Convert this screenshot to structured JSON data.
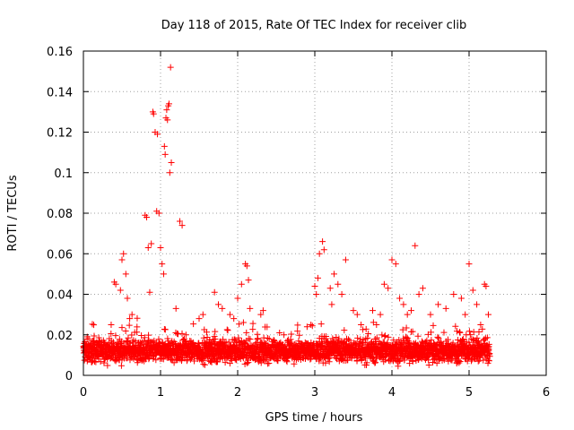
{
  "chart_data": {
    "type": "scatter",
    "title": "Day 118 of 2015, Rate Of TEC Index for receiver clib",
    "xlabel": "GPS time / hours",
    "ylabel": "ROTI / TECUs",
    "xlim": [
      0,
      6
    ],
    "ylim": [
      0,
      0.16
    ],
    "xticks": [
      "0",
      "1",
      "2",
      "3",
      "4",
      "5",
      "6"
    ],
    "yticks": [
      "0",
      "0.02",
      "0.04",
      "0.06",
      "0.08",
      "0.1",
      "0.12",
      "0.14",
      "0.16"
    ],
    "grid": true,
    "marker": "+",
    "color": "#ff0000",
    "series": [
      {
        "name": "ROTI",
        "x": [
          0.05,
          0.07,
          0.1,
          0.12,
          0.36,
          0.4,
          0.42,
          0.48,
          0.5,
          0.52,
          0.55,
          0.57,
          0.6,
          0.63,
          0.8,
          0.82,
          0.84,
          0.86,
          0.88,
          0.9,
          0.91,
          0.93,
          0.95,
          0.96,
          0.98,
          1.0,
          1.02,
          1.04,
          1.05,
          1.06,
          1.07,
          1.08,
          1.09,
          1.1,
          1.11,
          1.12,
          1.13,
          1.14,
          1.2,
          1.25,
          1.28,
          1.33,
          1.5,
          1.55,
          1.7,
          1.75,
          1.8,
          1.9,
          1.95,
          2.0,
          2.05,
          2.1,
          2.12,
          2.14,
          2.16,
          2.3,
          2.33,
          2.6,
          2.9,
          2.95,
          3.0,
          3.02,
          3.04,
          3.06,
          3.1,
          3.12,
          3.2,
          3.22,
          3.25,
          3.3,
          3.35,
          3.4,
          3.5,
          3.55,
          3.6,
          3.75,
          3.8,
          3.85,
          3.9,
          3.95,
          4.0,
          4.05,
          4.1,
          4.15,
          4.2,
          4.25,
          4.3,
          4.35,
          4.4,
          4.5,
          4.6,
          4.7,
          4.8,
          4.9,
          4.95,
          5.0,
          5.05,
          5.1,
          5.15,
          5.2,
          5.22,
          5.25
        ],
        "y": [
          0.019,
          0.018,
          0.016,
          0.017,
          0.025,
          0.046,
          0.045,
          0.042,
          0.057,
          0.06,
          0.05,
          0.038,
          0.028,
          0.03,
          0.079,
          0.078,
          0.063,
          0.041,
          0.065,
          0.13,
          0.129,
          0.12,
          0.081,
          0.119,
          0.08,
          0.063,
          0.055,
          0.05,
          0.113,
          0.109,
          0.127,
          0.131,
          0.126,
          0.133,
          0.134,
          0.1,
          0.152,
          0.105,
          0.033,
          0.076,
          0.074,
          0.02,
          0.028,
          0.03,
          0.041,
          0.035,
          0.033,
          0.03,
          0.028,
          0.038,
          0.045,
          0.055,
          0.054,
          0.047,
          0.033,
          0.03,
          0.032,
          0.02,
          0.024,
          0.025,
          0.044,
          0.04,
          0.048,
          0.06,
          0.066,
          0.062,
          0.043,
          0.035,
          0.05,
          0.045,
          0.04,
          0.057,
          0.032,
          0.03,
          0.025,
          0.032,
          0.025,
          0.03,
          0.045,
          0.043,
          0.057,
          0.055,
          0.038,
          0.035,
          0.03,
          0.032,
          0.064,
          0.04,
          0.043,
          0.03,
          0.035,
          0.033,
          0.04,
          0.038,
          0.03,
          0.055,
          0.042,
          0.035,
          0.025,
          0.045,
          0.044,
          0.03
        ]
      }
    ],
    "background_band": {
      "x_range": [
        0,
        5.27
      ],
      "y_typical": [
        0.004,
        0.02
      ],
      "note": "dense cluster of small ROTI values across the full time span"
    }
  }
}
